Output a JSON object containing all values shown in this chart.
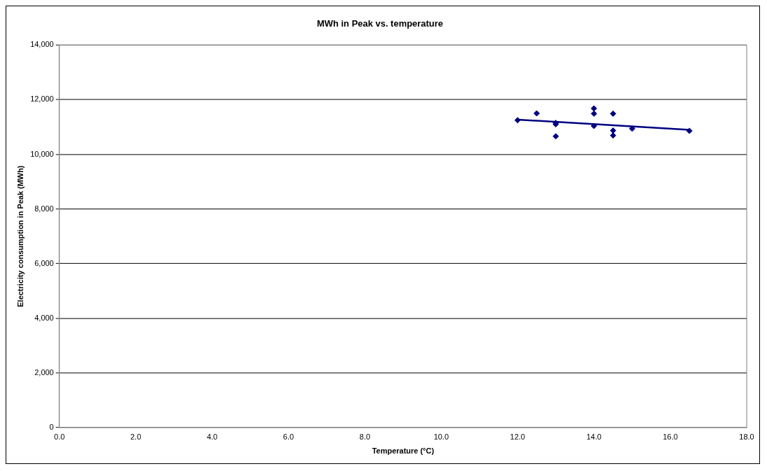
{
  "chart_data": {
    "type": "scatter",
    "title": "MWh in Peak vs. temperature",
    "xlabel": "Temperature (°C)",
    "ylabel": "Electricity consumption in Peak (MWh)",
    "series": [
      {
        "color": "#000080",
        "marker": "diamond",
        "x": [
          12,
          12.5,
          13,
          13,
          13,
          14,
          14,
          14,
          14.5,
          14.5,
          14.5,
          15,
          16.5
        ],
        "values": [
          11250,
          11500,
          11150,
          11100,
          10660,
          11680,
          11490,
          11040,
          11490,
          10870,
          10690,
          10940,
          10860
        ]
      },
      {
        "type": "line",
        "marker": "none",
        "color": "#000080",
        "x": [
          12,
          16.5
        ],
        "values": [
          11270,
          10900
        ]
      }
    ],
    "xlim": [
      0,
      18
    ],
    "xticks": [
      {
        "value": 0,
        "label": "0.0"
      },
      {
        "value": 2,
        "label": "2.0"
      },
      {
        "value": 4,
        "label": "4.0"
      },
      {
        "value": 6,
        "label": "6.0"
      },
      {
        "value": 8,
        "label": "8.0"
      },
      {
        "value": 10,
        "label": "10.0"
      },
      {
        "value": 12,
        "label": "12.0"
      },
      {
        "value": 14,
        "label": "14.0"
      },
      {
        "value": 16,
        "label": "16.0"
      },
      {
        "value": 18,
        "label": "18.0"
      }
    ],
    "ylim": [
      0,
      14000
    ],
    "yticks": [
      0,
      {
        "value": 2000,
        "label": "2,000"
      },
      {
        "value": 4000,
        "label": "4,000"
      },
      {
        "value": 6000,
        "label": "6,000"
      },
      {
        "value": 8000,
        "label": "8,000"
      },
      {
        "value": 10000,
        "label": "10,000"
      },
      {
        "value": 12000,
        "label": "12,000"
      },
      {
        "value": 14000,
        "label": "14,000"
      }
    ],
    "grid": "y",
    "legend": false
  }
}
